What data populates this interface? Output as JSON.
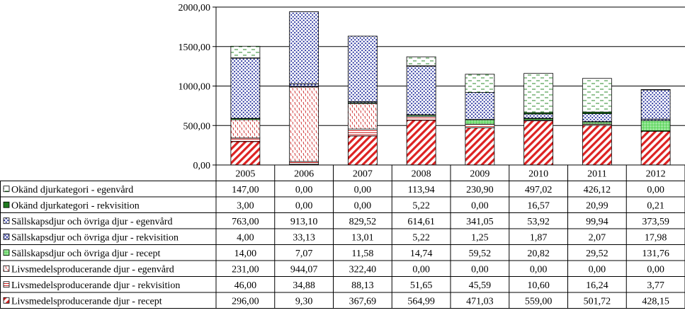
{
  "chart_data": {
    "type": "bar",
    "stacked": true,
    "categories": [
      "2005",
      "2006",
      "2007",
      "2008",
      "2009",
      "2010",
      "2011",
      "2012"
    ],
    "y_ticks": [
      "0,00",
      "500,00",
      "1000,00",
      "1500,00",
      "2000,00"
    ],
    "ylim": [
      0,
      2000
    ],
    "grid": true,
    "legend": "data table below chart",
    "series": [
      {
        "name": "Okänd djurkategori - egenvård",
        "values": [
          147.0,
          0.0,
          0.0,
          113.94,
          230.9,
          497.02,
          426.12,
          0.0
        ],
        "labels": [
          "147,00",
          "0,00",
          "0,00",
          "113,94",
          "230,90",
          "497,02",
          "426,12",
          "0,00"
        ],
        "color": "#2e8b2e",
        "pattern": "dashes"
      },
      {
        "name": "Okänd djurkategori - rekvisition",
        "values": [
          3.0,
          0.0,
          0.0,
          5.22,
          0.0,
          16.57,
          20.99,
          0.21
        ],
        "labels": [
          "3,00",
          "0,00",
          "0,00",
          "5,22",
          "0,00",
          "16,57",
          "20,99",
          "0,21"
        ],
        "color": "#1f7a1f",
        "pattern": "solid"
      },
      {
        "name": "Sällskapsdjur och övriga djur - egenvård",
        "values": [
          763.0,
          913.1,
          829.52,
          614.61,
          341.05,
          53.92,
          99.94,
          373.59
        ],
        "labels": [
          "763,00",
          "913,10",
          "829,52",
          "614,61",
          "341,05",
          "53,92",
          "99,94",
          "373,59"
        ],
        "color": "#1f2a9a",
        "pattern": "dots"
      },
      {
        "name": "Sällskapsdjur och övriga djur - rekvisition",
        "values": [
          4.0,
          33.13,
          13.01,
          5.22,
          1.25,
          1.87,
          2.07,
          17.98
        ],
        "labels": [
          "4,00",
          "33,13",
          "13,01",
          "5,22",
          "1,25",
          "1,87",
          "2,07",
          "17,98"
        ],
        "color": "#1f2a9a",
        "pattern": "cross"
      },
      {
        "name": "Sällskapsdjur och övriga djur - recept",
        "values": [
          14.0,
          7.07,
          11.58,
          14.74,
          59.52,
          20.82,
          29.52,
          131.76
        ],
        "labels": [
          "14,00",
          "7,07",
          "11,58",
          "14,74",
          "59,52",
          "20,82",
          "29,52",
          "131,76"
        ],
        "color": "#33cc33",
        "pattern": "grid"
      },
      {
        "name": "Livsmedelsproducerande djur - egenvård",
        "values": [
          231.0,
          944.07,
          322.4,
          0.0,
          0.0,
          0.0,
          0.0,
          0.0
        ],
        "labels": [
          "231,00",
          "944,07",
          "322,40",
          "0,00",
          "0,00",
          "0,00",
          "0,00",
          "0,00"
        ],
        "color": "#cc2222",
        "pattern": "vdash"
      },
      {
        "name": "Livsmedelsproducerande djur - rekvisition",
        "values": [
          46.0,
          34.88,
          88.13,
          51.65,
          45.59,
          10.6,
          16.24,
          3.77
        ],
        "labels": [
          "46,00",
          "34,88",
          "88,13",
          "51,65",
          "45,59",
          "10,60",
          "16,24",
          "3,77"
        ],
        "color": "#cc2222",
        "pattern": "hlines"
      },
      {
        "name": "Livsmedelsproducerande djur - recept",
        "values": [
          296.0,
          9.3,
          367.69,
          564.99,
          471.03,
          559.0,
          501.72,
          428.15
        ],
        "labels": [
          "296,00",
          "9,30",
          "367,69",
          "564,99",
          "471,03",
          "559,00",
          "501,72",
          "428,15"
        ],
        "color": "#dd2222",
        "pattern": "diag"
      }
    ]
  }
}
